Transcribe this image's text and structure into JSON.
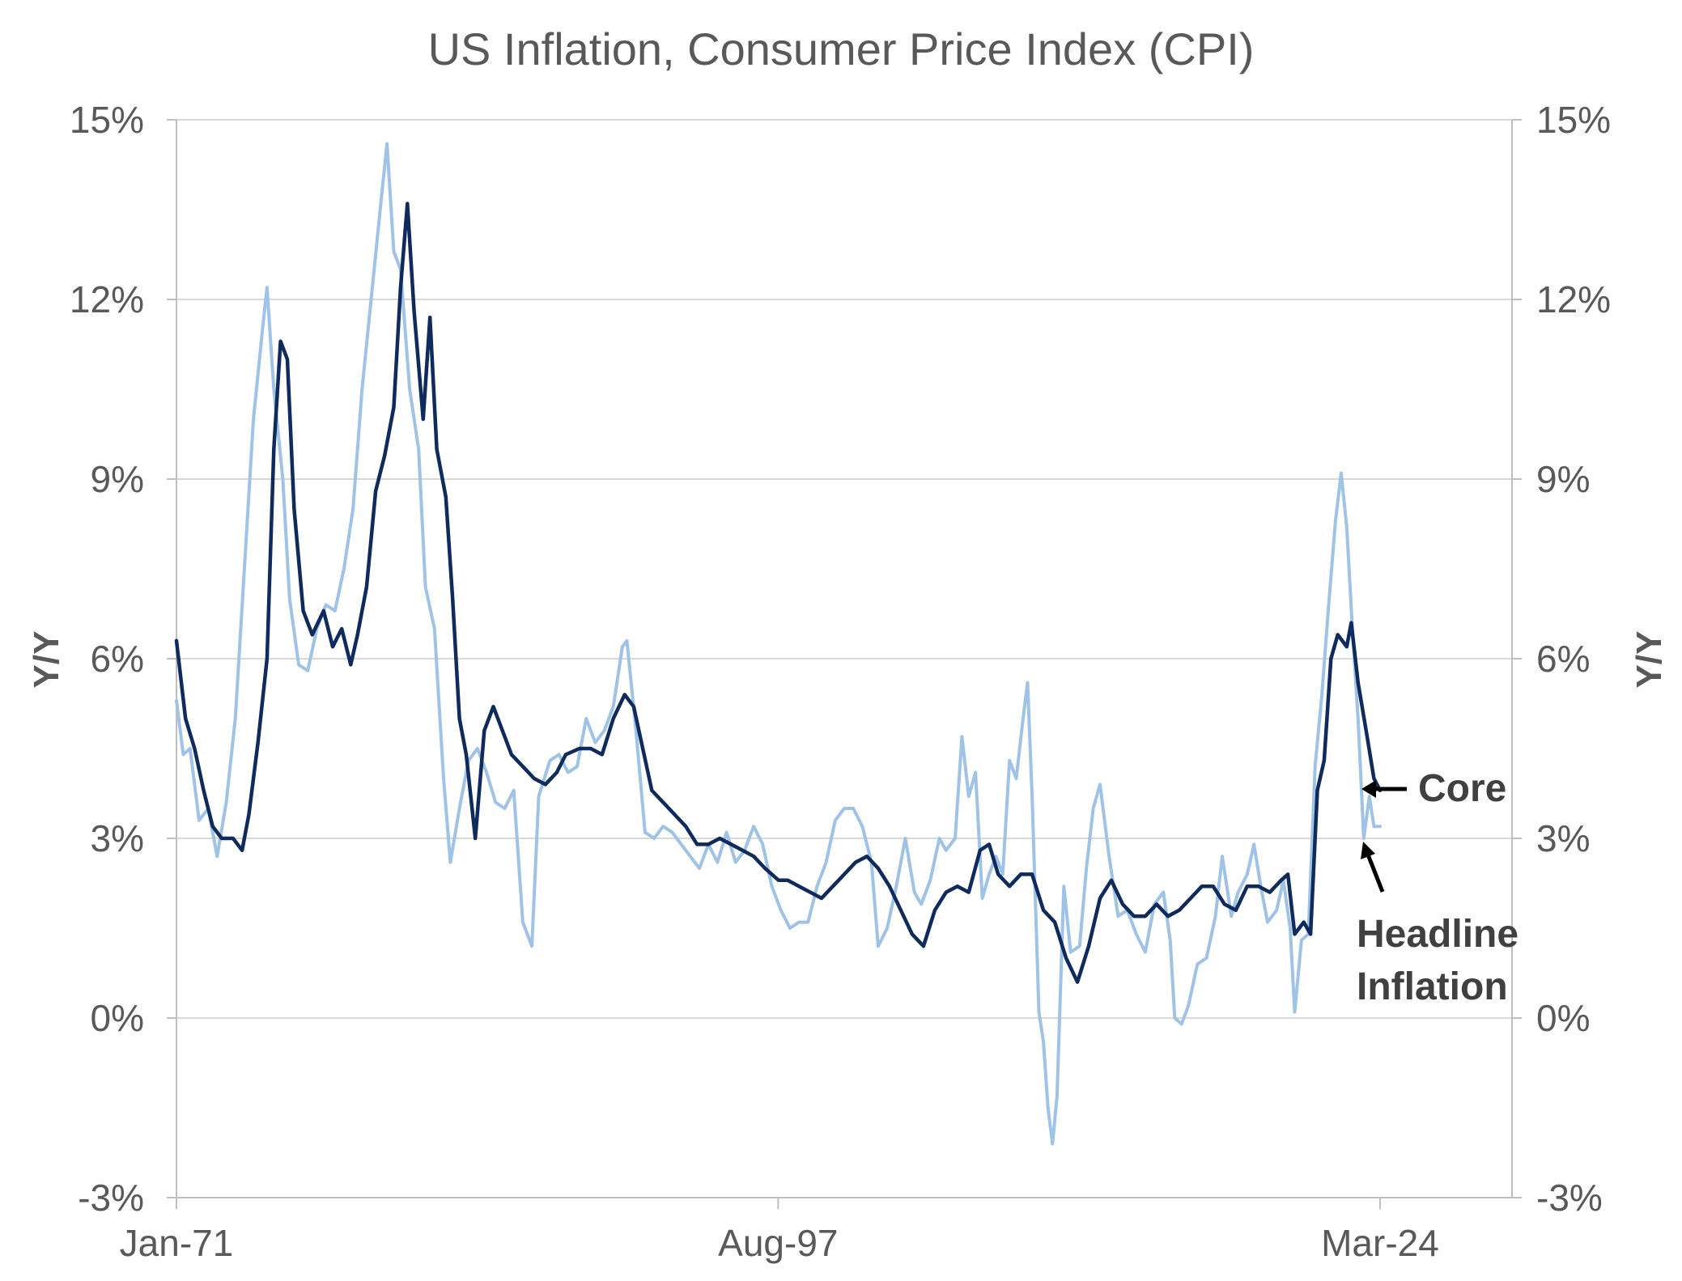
{
  "chart_data": {
    "type": "line",
    "title": "US Inflation, Consumer Price Index (CPI)",
    "ylabel_left": "Y/Y",
    "ylabel_right": "Y/Y",
    "ylim": [
      -3,
      15
    ],
    "yticks": [
      -3,
      0,
      3,
      6,
      9,
      12,
      15
    ],
    "ytick_labels": [
      "-3%",
      "0%",
      "3%",
      "6%",
      "9%",
      "12%",
      "15%"
    ],
    "x_range": [
      1971.0,
      2024.17
    ],
    "xlim": [
      1971.0,
      2030.0
    ],
    "xticks": [
      {
        "value": 1971.0,
        "label": "Jan-71"
      },
      {
        "value": 1997.58,
        "label": "Aug-97"
      },
      {
        "value": 2024.17,
        "label": "Mar-24"
      }
    ],
    "grid": true,
    "colors": {
      "core": "#0f2a5c",
      "headline": "#9fc3e6",
      "grid": "#d9d9d9",
      "axis": "#bfbfbf",
      "text": "#595959"
    },
    "series": [
      {
        "name": "Core",
        "color": "#0f2a5c",
        "points": [
          [
            1971.0,
            6.3
          ],
          [
            1971.4,
            5.0
          ],
          [
            1971.8,
            4.5
          ],
          [
            1972.2,
            3.8
          ],
          [
            1972.6,
            3.2
          ],
          [
            1973.0,
            3.0
          ],
          [
            1973.5,
            3.0
          ],
          [
            1973.9,
            2.8
          ],
          [
            1974.2,
            3.4
          ],
          [
            1974.6,
            4.6
          ],
          [
            1975.0,
            6.0
          ],
          [
            1975.3,
            9.5
          ],
          [
            1975.6,
            11.3
          ],
          [
            1975.9,
            11.0
          ],
          [
            1976.2,
            8.5
          ],
          [
            1976.6,
            6.8
          ],
          [
            1977.0,
            6.4
          ],
          [
            1977.5,
            6.8
          ],
          [
            1977.9,
            6.2
          ],
          [
            1978.3,
            6.5
          ],
          [
            1978.7,
            5.9
          ],
          [
            1979.0,
            6.4
          ],
          [
            1979.4,
            7.2
          ],
          [
            1979.8,
            8.8
          ],
          [
            1980.2,
            9.4
          ],
          [
            1980.6,
            10.2
          ],
          [
            1980.9,
            12.2
          ],
          [
            1981.2,
            13.6
          ],
          [
            1981.5,
            11.8
          ],
          [
            1981.9,
            10.0
          ],
          [
            1982.2,
            11.7
          ],
          [
            1982.5,
            9.5
          ],
          [
            1982.9,
            8.7
          ],
          [
            1983.2,
            7.0
          ],
          [
            1983.5,
            5.0
          ],
          [
            1983.8,
            4.4
          ],
          [
            1984.2,
            3.0
          ],
          [
            1984.6,
            4.8
          ],
          [
            1985.0,
            5.2
          ],
          [
            1985.4,
            4.8
          ],
          [
            1985.8,
            4.4
          ],
          [
            1986.3,
            4.2
          ],
          [
            1986.8,
            4.0
          ],
          [
            1987.3,
            3.9
          ],
          [
            1987.8,
            4.1
          ],
          [
            1988.2,
            4.4
          ],
          [
            1988.8,
            4.5
          ],
          [
            1989.3,
            4.5
          ],
          [
            1989.8,
            4.4
          ],
          [
            1990.3,
            5.0
          ],
          [
            1990.8,
            5.4
          ],
          [
            1991.2,
            5.2
          ],
          [
            1991.6,
            4.5
          ],
          [
            1992.0,
            3.8
          ],
          [
            1992.5,
            3.6
          ],
          [
            1993.0,
            3.4
          ],
          [
            1993.5,
            3.2
          ],
          [
            1994.0,
            2.9
          ],
          [
            1994.5,
            2.9
          ],
          [
            1995.0,
            3.0
          ],
          [
            1995.5,
            2.9
          ],
          [
            1996.0,
            2.8
          ],
          [
            1996.5,
            2.7
          ],
          [
            1997.0,
            2.5
          ],
          [
            1997.6,
            2.3
          ],
          [
            1998.0,
            2.3
          ],
          [
            1998.5,
            2.2
          ],
          [
            1999.0,
            2.1
          ],
          [
            1999.5,
            2.0
          ],
          [
            2000.0,
            2.2
          ],
          [
            2000.5,
            2.4
          ],
          [
            2001.0,
            2.6
          ],
          [
            2001.5,
            2.7
          ],
          [
            2002.0,
            2.5
          ],
          [
            2002.5,
            2.2
          ],
          [
            2003.0,
            1.8
          ],
          [
            2003.5,
            1.4
          ],
          [
            2004.0,
            1.2
          ],
          [
            2004.5,
            1.8
          ],
          [
            2005.0,
            2.1
          ],
          [
            2005.5,
            2.2
          ],
          [
            2006.0,
            2.1
          ],
          [
            2006.5,
            2.8
          ],
          [
            2006.9,
            2.9
          ],
          [
            2007.3,
            2.4
          ],
          [
            2007.8,
            2.2
          ],
          [
            2008.3,
            2.4
          ],
          [
            2008.8,
            2.4
          ],
          [
            2009.3,
            1.8
          ],
          [
            2009.8,
            1.6
          ],
          [
            2010.3,
            1.0
          ],
          [
            2010.8,
            0.6
          ],
          [
            2011.3,
            1.2
          ],
          [
            2011.8,
            2.0
          ],
          [
            2012.3,
            2.3
          ],
          [
            2012.8,
            1.9
          ],
          [
            2013.3,
            1.7
          ],
          [
            2013.8,
            1.7
          ],
          [
            2014.3,
            1.9
          ],
          [
            2014.8,
            1.7
          ],
          [
            2015.3,
            1.8
          ],
          [
            2015.8,
            2.0
          ],
          [
            2016.3,
            2.2
          ],
          [
            2016.8,
            2.2
          ],
          [
            2017.3,
            1.9
          ],
          [
            2017.8,
            1.8
          ],
          [
            2018.3,
            2.2
          ],
          [
            2018.8,
            2.2
          ],
          [
            2019.3,
            2.1
          ],
          [
            2019.8,
            2.3
          ],
          [
            2020.1,
            2.4
          ],
          [
            2020.4,
            1.4
          ],
          [
            2020.8,
            1.6
          ],
          [
            2021.1,
            1.4
          ],
          [
            2021.4,
            3.8
          ],
          [
            2021.7,
            4.3
          ],
          [
            2022.0,
            6.0
          ],
          [
            2022.3,
            6.4
          ],
          [
            2022.7,
            6.2
          ],
          [
            2022.9,
            6.6
          ],
          [
            2023.2,
            5.6
          ],
          [
            2023.6,
            4.7
          ],
          [
            2023.9,
            4.0
          ],
          [
            2024.17,
            3.8
          ]
        ]
      },
      {
        "name": "Headline Inflation",
        "color": "#9fc3e6",
        "points": [
          [
            1971.0,
            5.3
          ],
          [
            1971.3,
            4.4
          ],
          [
            1971.6,
            4.5
          ],
          [
            1972.0,
            3.3
          ],
          [
            1972.4,
            3.5
          ],
          [
            1972.8,
            2.7
          ],
          [
            1973.2,
            3.6
          ],
          [
            1973.6,
            5.0
          ],
          [
            1974.0,
            7.5
          ],
          [
            1974.4,
            10.0
          ],
          [
            1974.8,
            11.5
          ],
          [
            1975.0,
            12.2
          ],
          [
            1975.3,
            10.5
          ],
          [
            1975.7,
            9.0
          ],
          [
            1976.0,
            7.0
          ],
          [
            1976.4,
            5.9
          ],
          [
            1976.8,
            5.8
          ],
          [
            1977.2,
            6.5
          ],
          [
            1977.6,
            6.9
          ],
          [
            1978.0,
            6.8
          ],
          [
            1978.4,
            7.5
          ],
          [
            1978.8,
            8.5
          ],
          [
            1979.2,
            10.5
          ],
          [
            1979.6,
            12.0
          ],
          [
            1980.0,
            13.5
          ],
          [
            1980.3,
            14.6
          ],
          [
            1980.6,
            12.8
          ],
          [
            1980.9,
            12.5
          ],
          [
            1981.3,
            10.5
          ],
          [
            1981.7,
            9.5
          ],
          [
            1982.0,
            7.2
          ],
          [
            1982.4,
            6.5
          ],
          [
            1982.8,
            4.0
          ],
          [
            1983.1,
            2.6
          ],
          [
            1983.5,
            3.5
          ],
          [
            1983.9,
            4.3
          ],
          [
            1984.3,
            4.5
          ],
          [
            1984.7,
            4.1
          ],
          [
            1985.1,
            3.6
          ],
          [
            1985.5,
            3.5
          ],
          [
            1985.9,
            3.8
          ],
          [
            1986.3,
            1.6
          ],
          [
            1986.7,
            1.2
          ],
          [
            1987.0,
            3.7
          ],
          [
            1987.5,
            4.3
          ],
          [
            1987.9,
            4.4
          ],
          [
            1988.3,
            4.1
          ],
          [
            1988.7,
            4.2
          ],
          [
            1989.1,
            5.0
          ],
          [
            1989.5,
            4.6
          ],
          [
            1989.9,
            4.8
          ],
          [
            1990.3,
            5.2
          ],
          [
            1990.7,
            6.2
          ],
          [
            1990.9,
            6.3
          ],
          [
            1991.3,
            4.8
          ],
          [
            1991.7,
            3.1
          ],
          [
            1992.1,
            3.0
          ],
          [
            1992.5,
            3.2
          ],
          [
            1992.9,
            3.1
          ],
          [
            1993.3,
            2.9
          ],
          [
            1993.7,
            2.7
          ],
          [
            1994.1,
            2.5
          ],
          [
            1994.5,
            2.9
          ],
          [
            1994.9,
            2.6
          ],
          [
            1995.3,
            3.1
          ],
          [
            1995.7,
            2.6
          ],
          [
            1996.1,
            2.8
          ],
          [
            1996.5,
            3.2
          ],
          [
            1996.9,
            2.9
          ],
          [
            1997.3,
            2.2
          ],
          [
            1997.7,
            1.8
          ],
          [
            1998.1,
            1.5
          ],
          [
            1998.5,
            1.6
          ],
          [
            1998.9,
            1.6
          ],
          [
            1999.3,
            2.2
          ],
          [
            1999.7,
            2.6
          ],
          [
            2000.1,
            3.3
          ],
          [
            2000.5,
            3.5
          ],
          [
            2000.9,
            3.5
          ],
          [
            2001.3,
            3.2
          ],
          [
            2001.7,
            2.6
          ],
          [
            2002.0,
            1.2
          ],
          [
            2002.4,
            1.5
          ],
          [
            2002.8,
            2.2
          ],
          [
            2003.2,
            3.0
          ],
          [
            2003.6,
            2.1
          ],
          [
            2003.9,
            1.9
          ],
          [
            2004.3,
            2.3
          ],
          [
            2004.7,
            3.0
          ],
          [
            2005.0,
            2.8
          ],
          [
            2005.4,
            3.0
          ],
          [
            2005.7,
            4.7
          ],
          [
            2006.0,
            3.7
          ],
          [
            2006.3,
            4.1
          ],
          [
            2006.6,
            2.0
          ],
          [
            2006.9,
            2.4
          ],
          [
            2007.2,
            2.7
          ],
          [
            2007.5,
            2.4
          ],
          [
            2007.8,
            4.3
          ],
          [
            2008.1,
            4.0
          ],
          [
            2008.4,
            5.0
          ],
          [
            2008.6,
            5.6
          ],
          [
            2008.8,
            3.7
          ],
          [
            2009.1,
            0.1
          ],
          [
            2009.3,
            -0.4
          ],
          [
            2009.5,
            -1.5
          ],
          [
            2009.7,
            -2.1
          ],
          [
            2009.9,
            -1.3
          ],
          [
            2010.2,
            2.2
          ],
          [
            2010.5,
            1.1
          ],
          [
            2010.9,
            1.2
          ],
          [
            2011.2,
            2.5
          ],
          [
            2011.5,
            3.5
          ],
          [
            2011.8,
            3.9
          ],
          [
            2012.2,
            2.7
          ],
          [
            2012.6,
            1.7
          ],
          [
            2013.0,
            1.8
          ],
          [
            2013.4,
            1.4
          ],
          [
            2013.8,
            1.1
          ],
          [
            2014.2,
            1.9
          ],
          [
            2014.6,
            2.1
          ],
          [
            2014.9,
            1.3
          ],
          [
            2015.1,
            0.0
          ],
          [
            2015.4,
            -0.1
          ],
          [
            2015.7,
            0.2
          ],
          [
            2016.1,
            0.9
          ],
          [
            2016.5,
            1.0
          ],
          [
            2016.9,
            1.7
          ],
          [
            2017.2,
            2.7
          ],
          [
            2017.6,
            1.7
          ],
          [
            2017.9,
            2.1
          ],
          [
            2018.3,
            2.4
          ],
          [
            2018.6,
            2.9
          ],
          [
            2018.9,
            2.2
          ],
          [
            2019.2,
            1.6
          ],
          [
            2019.6,
            1.8
          ],
          [
            2019.9,
            2.3
          ],
          [
            2020.2,
            1.5
          ],
          [
            2020.4,
            0.1
          ],
          [
            2020.7,
            1.3
          ],
          [
            2021.0,
            1.4
          ],
          [
            2021.3,
            4.2
          ],
          [
            2021.6,
            5.4
          ],
          [
            2021.9,
            6.9
          ],
          [
            2022.2,
            8.3
          ],
          [
            2022.45,
            9.1
          ],
          [
            2022.7,
            8.2
          ],
          [
            2022.95,
            6.5
          ],
          [
            2023.2,
            5.0
          ],
          [
            2023.45,
            3.0
          ],
          [
            2023.7,
            3.7
          ],
          [
            2023.9,
            3.2
          ],
          [
            2024.17,
            3.2
          ]
        ]
      }
    ],
    "annotations": [
      {
        "text": "Core",
        "series": "Core"
      },
      {
        "text": "Headline",
        "series": "Headline Inflation"
      },
      {
        "text": "Inflation",
        "series": "Headline Inflation"
      }
    ]
  }
}
